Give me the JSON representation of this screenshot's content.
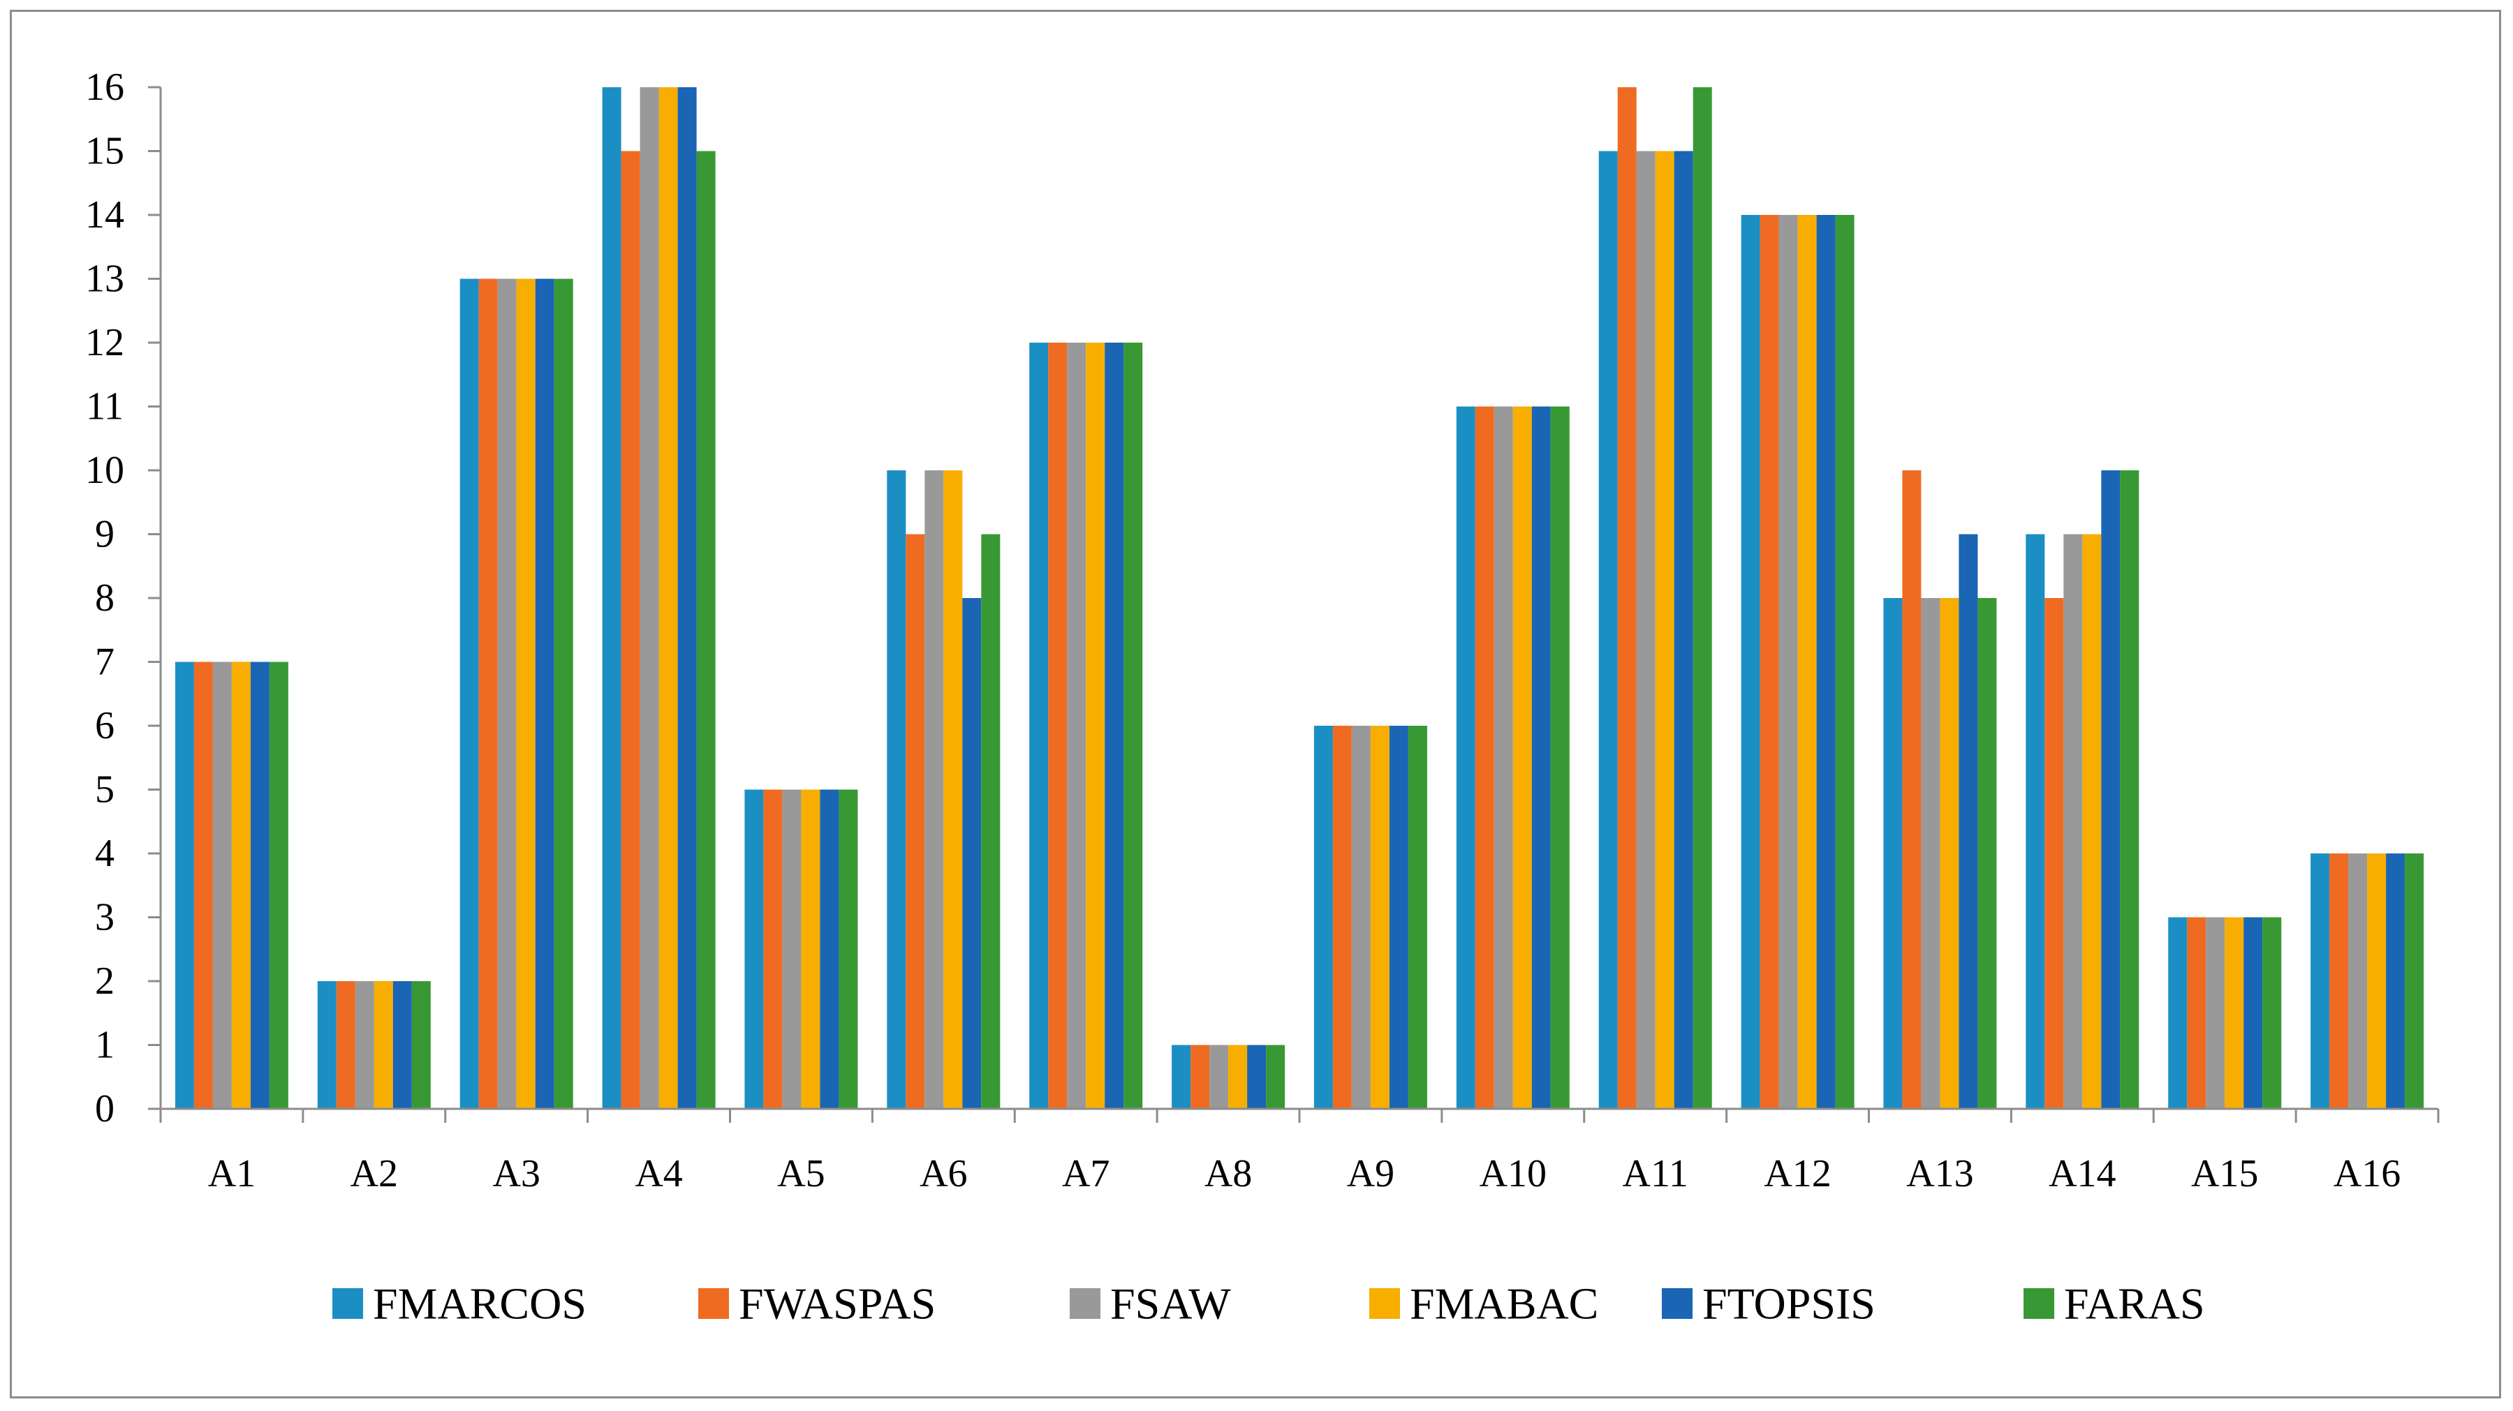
{
  "chart_data": {
    "type": "bar",
    "title": "",
    "xlabel": "",
    "ylabel": "",
    "ylim": [
      0,
      16
    ],
    "yticks": [
      0,
      1,
      2,
      3,
      4,
      5,
      6,
      7,
      8,
      9,
      10,
      11,
      12,
      13,
      14,
      15,
      16
    ],
    "grid": false,
    "legend_position": "bottom",
    "categories": [
      "A1",
      "A2",
      "A3",
      "A4",
      "A5",
      "A6",
      "A7",
      "A8",
      "A9",
      "A10",
      "A11",
      "A12",
      "A13",
      "A14",
      "A15",
      "A16"
    ],
    "series": [
      {
        "name": "FMARCOS",
        "color": "#1b8fc4",
        "values": [
          7,
          2,
          13,
          16,
          5,
          10,
          12,
          1,
          6,
          11,
          15,
          14,
          8,
          9,
          3,
          4
        ]
      },
      {
        "name": "FWASPAS",
        "color": "#ef6b22",
        "values": [
          7,
          2,
          13,
          15,
          5,
          9,
          12,
          1,
          6,
          11,
          16,
          14,
          10,
          8,
          3,
          4
        ]
      },
      {
        "name": "FSAW",
        "color": "#999999",
        "values": [
          7,
          2,
          13,
          16,
          5,
          10,
          12,
          1,
          6,
          11,
          15,
          14,
          8,
          9,
          3,
          4
        ]
      },
      {
        "name": "FMABAC",
        "color": "#f7ae00",
        "values": [
          7,
          2,
          13,
          16,
          5,
          10,
          12,
          1,
          6,
          11,
          15,
          14,
          8,
          9,
          3,
          4
        ]
      },
      {
        "name": "FTOPSIS",
        "color": "#1a65b4",
        "values": [
          7,
          2,
          13,
          16,
          5,
          8,
          12,
          1,
          6,
          11,
          15,
          14,
          9,
          10,
          3,
          4
        ]
      },
      {
        "name": "FARAS",
        "color": "#389934",
        "values": [
          7,
          2,
          13,
          15,
          5,
          9,
          12,
          1,
          6,
          11,
          16,
          14,
          8,
          10,
          3,
          4
        ]
      }
    ]
  }
}
